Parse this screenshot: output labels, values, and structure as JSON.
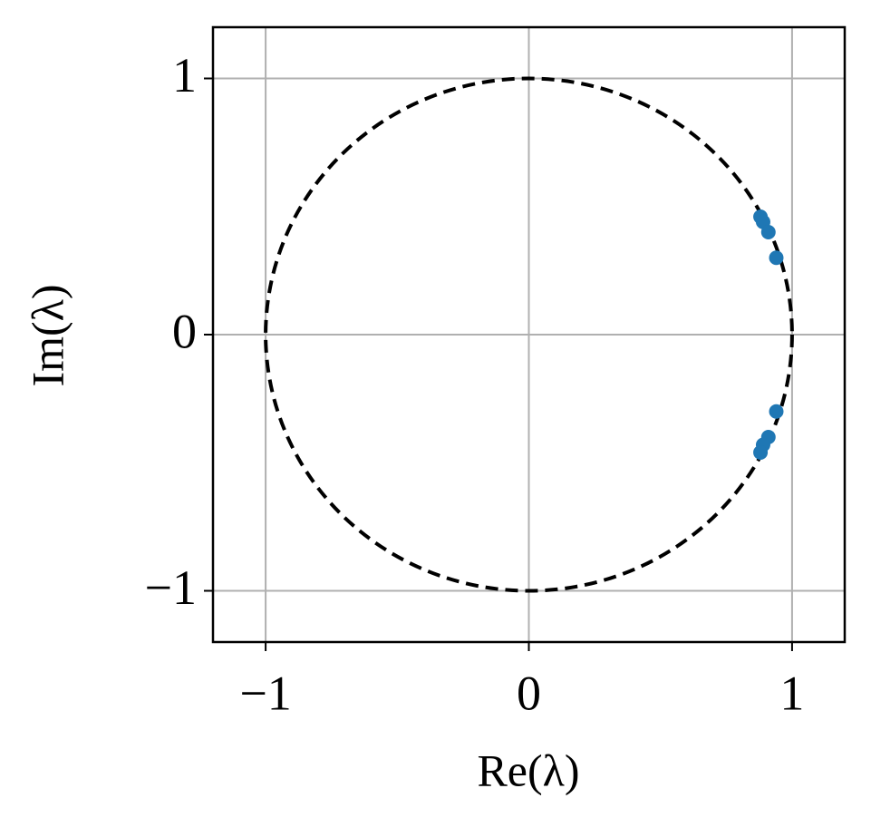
{
  "chart_data": {
    "type": "scatter",
    "x_label": "Re(λ)",
    "y_label": "Im(λ)",
    "series": [
      {
        "color": "#1f77b4",
        "x": [
          0.88,
          0.89,
          0.91,
          0.94,
          0.94,
          0.91,
          0.89,
          0.88
        ],
        "values": [
          0.46,
          0.44,
          0.4,
          0.3,
          -0.3,
          -0.4,
          -0.43,
          -0.46
        ]
      }
    ],
    "xlim": [
      -1.2,
      1.2
    ],
    "ylim": [
      -1.2,
      1.2
    ],
    "xticks": [
      {
        "value": -1,
        "label": "−1"
      },
      0,
      1
    ],
    "yticks": [
      {
        "value": -1,
        "label": "−1"
      },
      0,
      1
    ],
    "grid": true,
    "unit_circle": {
      "radius": 1,
      "dashed": true,
      "color": "#000000"
    }
  }
}
